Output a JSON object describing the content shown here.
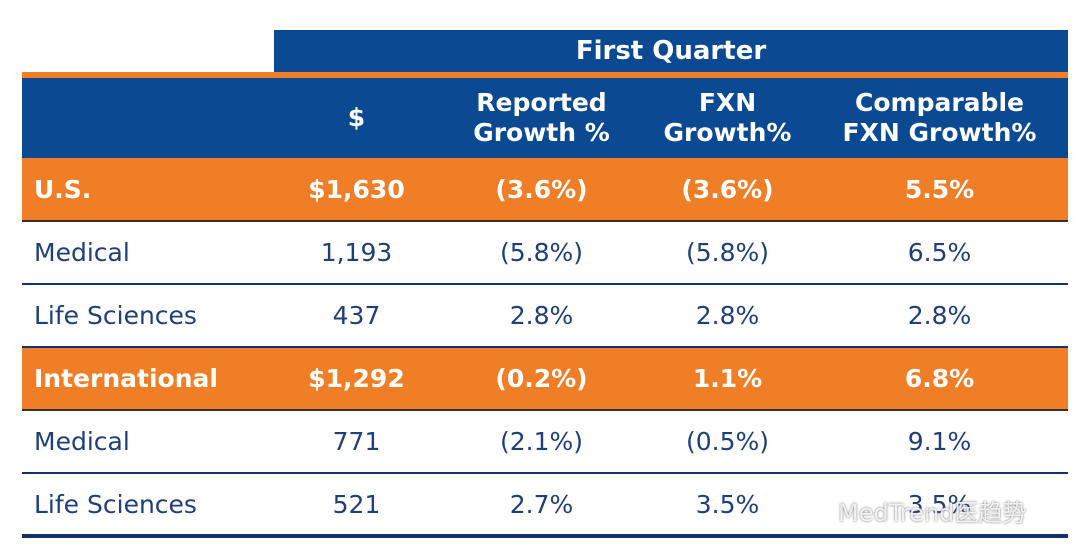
{
  "header": {
    "period": "First Quarter",
    "columns": [
      "$",
      "Reported\nGrowth %",
      "FXN\nGrowth%",
      "Comparable\nFXN Growth%"
    ]
  },
  "rows": [
    {
      "label": "U.S.",
      "dollars": "$1,630",
      "reported": "(3.6%)",
      "fxn": "(3.6%)",
      "comparable": "5.5%"
    },
    {
      "label": "Medical",
      "dollars": "1,193",
      "reported": "(5.8%)",
      "fxn": "(5.8%)",
      "comparable": "6.5%"
    },
    {
      "label": "Life Sciences",
      "dollars": "437",
      "reported": "2.8%",
      "fxn": "2.8%",
      "comparable": "2.8%"
    },
    {
      "label": "International",
      "dollars": "$1,292",
      "reported": "(0.2%)",
      "fxn": "1.1%",
      "comparable": "6.8%"
    },
    {
      "label": "Medical",
      "dollars": "771",
      "reported": "(2.1%)",
      "fxn": "(0.5%)",
      "comparable": "9.1%"
    },
    {
      "label": "Life Sciences",
      "dollars": "521",
      "reported": "2.7%",
      "fxn": "3.5%",
      "comparable": "3.5%"
    }
  ],
  "watermark": {
    "text": "MedTrend医趋势",
    "icon": "wechat-icon"
  },
  "colors": {
    "navy": "#0b4a93",
    "orange": "#f07e26",
    "text": "#1f3f7a"
  }
}
